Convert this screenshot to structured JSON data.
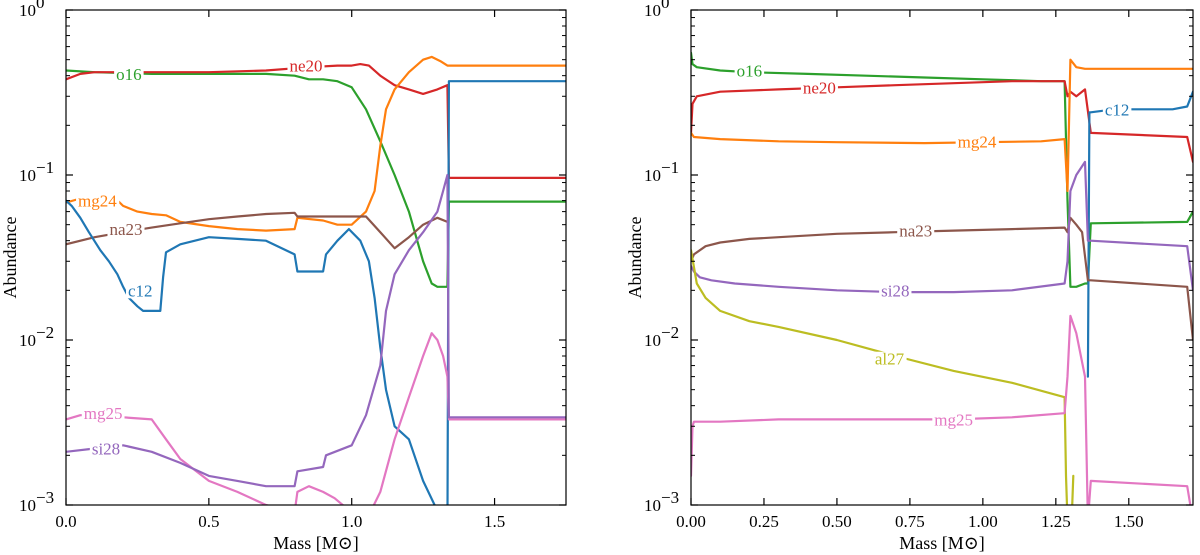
{
  "chart_data": [
    {
      "type": "line",
      "yscale": "log",
      "xlabel": "Mass [M⊙]",
      "ylabel": "Abundance",
      "xlim": [
        0,
        1.75
      ],
      "ylim": [
        0.001,
        1
      ],
      "xticks": [
        0.0,
        0.5,
        1.0,
        1.5
      ],
      "xtick_labels": [
        "0.0",
        "0.5",
        "1.0",
        "1.5"
      ],
      "yticks": [
        0.001,
        0.01,
        0.1,
        1
      ],
      "ytick_labels": [
        {
          "base": "10",
          "exp": "−3"
        },
        {
          "base": "10",
          "exp": "−2"
        },
        {
          "base": "10",
          "exp": "−1"
        },
        {
          "base": "10",
          "exp": "0"
        }
      ],
      "series": [
        {
          "name": "o16",
          "color": "#2ca02c",
          "label_at": [
            0.22,
            0.41
          ],
          "x": [
            0,
            0.1,
            0.3,
            0.5,
            0.7,
            0.8,
            0.85,
            0.9,
            0.95,
            1.0,
            1.05,
            1.1,
            1.15,
            1.2,
            1.25,
            1.28,
            1.3,
            1.32,
            1.335,
            1.34,
            1.75
          ],
          "y": [
            0.43,
            0.42,
            0.41,
            0.41,
            0.41,
            0.4,
            0.38,
            0.38,
            0.37,
            0.34,
            0.25,
            0.16,
            0.1,
            0.06,
            0.03,
            0.022,
            0.021,
            0.021,
            0.021,
            0.069,
            0.069
          ]
        },
        {
          "name": "ne20",
          "color": "#d62728",
          "label_at": [
            0.84,
            0.46
          ],
          "x": [
            0,
            0.05,
            0.1,
            0.3,
            0.5,
            0.7,
            0.85,
            0.95,
            1.0,
            1.03,
            1.06,
            1.1,
            1.15,
            1.2,
            1.25,
            1.3,
            1.335,
            1.34,
            1.75
          ],
          "y": [
            0.38,
            0.41,
            0.42,
            0.42,
            0.42,
            0.43,
            0.45,
            0.46,
            0.46,
            0.47,
            0.46,
            0.4,
            0.35,
            0.33,
            0.31,
            0.33,
            0.35,
            0.096,
            0.096
          ]
        },
        {
          "name": "mg24",
          "color": "#ff7f0e",
          "label_at": [
            0.11,
            0.07
          ],
          "x": [
            0,
            0.05,
            0.1,
            0.17,
            0.2,
            0.25,
            0.3,
            0.35,
            0.4,
            0.5,
            0.6,
            0.7,
            0.8,
            0.81,
            0.9,
            0.95,
            1.0,
            1.05,
            1.08,
            1.1,
            1.12,
            1.15,
            1.2,
            1.25,
            1.28,
            1.31,
            1.335,
            1.34,
            1.75
          ],
          "y": [
            0.068,
            0.072,
            0.072,
            0.073,
            0.065,
            0.06,
            0.058,
            0.057,
            0.052,
            0.049,
            0.047,
            0.046,
            0.047,
            0.055,
            0.053,
            0.05,
            0.05,
            0.06,
            0.08,
            0.15,
            0.25,
            0.33,
            0.42,
            0.5,
            0.52,
            0.49,
            0.46,
            0.46,
            0.46
          ]
        },
        {
          "name": "na23",
          "color": "#8c564b",
          "label_at": [
            0.21,
            0.047
          ],
          "x": [
            0,
            0.1,
            0.2,
            0.3,
            0.4,
            0.5,
            0.6,
            0.7,
            0.8,
            0.81,
            0.9,
            1.0,
            1.05,
            1.1,
            1.15,
            1.2,
            1.25,
            1.3,
            1.335
          ],
          "y": [
            0.038,
            0.042,
            0.045,
            0.048,
            0.051,
            0.054,
            0.056,
            0.058,
            0.059,
            0.056,
            0.056,
            0.056,
            0.056,
            0.045,
            0.036,
            0.042,
            0.05,
            0.055,
            0.052
          ]
        },
        {
          "name": "c12",
          "color": "#1f77b4",
          "label_at": [
            0.26,
            0.02
          ],
          "x": [
            0,
            0.02,
            0.05,
            0.08,
            0.12,
            0.15,
            0.18,
            0.2,
            0.22,
            0.25,
            0.27,
            0.3,
            0.33,
            0.34,
            0.35,
            0.4,
            0.5,
            0.6,
            0.7,
            0.8,
            0.81,
            0.9,
            0.91,
            0.95,
            0.99,
            1.03,
            1.06,
            1.08,
            1.1,
            1.12,
            1.15,
            1.2,
            1.25,
            1.29,
            1.3,
            1.335,
            1.34,
            1.75
          ],
          "y": [
            0.07,
            0.065,
            0.055,
            0.045,
            0.035,
            0.03,
            0.025,
            0.021,
            0.018,
            0.016,
            0.015,
            0.015,
            0.015,
            0.024,
            0.034,
            0.038,
            0.042,
            0.041,
            0.04,
            0.033,
            0.026,
            0.026,
            0.033,
            0.04,
            0.047,
            0.04,
            0.03,
            0.018,
            0.009,
            0.005,
            0.003,
            0.0025,
            0.0014,
            0.001,
            0.0006,
            0.0006,
            0.37,
            0.37
          ]
        },
        {
          "name": "mg25",
          "color": "#e377c2",
          "label_at": [
            0.13,
            0.0036
          ],
          "x": [
            0,
            0.05,
            0.1,
            0.2,
            0.3,
            0.35,
            0.4,
            0.5,
            0.6,
            0.7,
            0.8,
            0.81,
            0.85,
            0.9,
            0.94,
            1.0,
            1.05,
            1.1,
            1.15,
            1.2,
            1.25,
            1.28,
            1.3,
            1.32,
            1.335,
            1.34,
            1.75
          ],
          "y": [
            0.0033,
            0.0035,
            0.0035,
            0.0034,
            0.0033,
            0.0025,
            0.0019,
            0.0014,
            0.0012,
            0.001,
            0.0009,
            0.0012,
            0.0013,
            0.0012,
            0.0011,
            0.0009,
            0.0008,
            0.0012,
            0.0025,
            0.0045,
            0.008,
            0.011,
            0.01,
            0.008,
            0.006,
            0.0033,
            0.0033
          ]
        },
        {
          "name": "si28",
          "color": "#9467bd",
          "label_at": [
            0.14,
            0.0022
          ],
          "x": [
            0,
            0.1,
            0.2,
            0.3,
            0.4,
            0.5,
            0.6,
            0.7,
            0.8,
            0.81,
            0.9,
            0.91,
            1.0,
            1.05,
            1.1,
            1.12,
            1.15,
            1.2,
            1.25,
            1.3,
            1.32,
            1.335,
            1.34,
            1.75
          ],
          "y": [
            0.0021,
            0.0022,
            0.0023,
            0.0021,
            0.0018,
            0.0015,
            0.0014,
            0.0013,
            0.0013,
            0.0016,
            0.0017,
            0.002,
            0.0023,
            0.0035,
            0.007,
            0.015,
            0.025,
            0.035,
            0.045,
            0.06,
            0.08,
            0.1,
            0.0034,
            0.0034
          ]
        }
      ]
    },
    {
      "type": "line",
      "yscale": "log",
      "xlabel": "Mass [M⊙]",
      "ylabel": "Abundance",
      "xlim": [
        0,
        1.72
      ],
      "ylim": [
        0.001,
        1
      ],
      "xticks": [
        0.0,
        0.25,
        0.5,
        0.75,
        1.0,
        1.25,
        1.5
      ],
      "xtick_labels": [
        "0.00",
        "0.25",
        "0.50",
        "0.75",
        "1.00",
        "1.25",
        "1.50"
      ],
      "yticks": [
        0.001,
        0.01,
        0.1,
        1
      ],
      "ytick_labels": [
        {
          "base": "10",
          "exp": "−3"
        },
        {
          "base": "10",
          "exp": "−2"
        },
        {
          "base": "10",
          "exp": "−1"
        },
        {
          "base": "10",
          "exp": "0"
        }
      ],
      "series": [
        {
          "name": "o16",
          "color": "#2ca02c",
          "label_at": [
            0.2,
            0.43
          ],
          "x": [
            0,
            0.005,
            0.02,
            0.1,
            0.2,
            0.4,
            0.6,
            0.8,
            1.0,
            1.2,
            1.28,
            1.29,
            1.3,
            1.32,
            1.35,
            1.36,
            1.37,
            1.7,
            1.72
          ],
          "y": [
            0.55,
            0.47,
            0.45,
            0.43,
            0.42,
            0.41,
            0.4,
            0.39,
            0.38,
            0.37,
            0.37,
            0.07,
            0.021,
            0.021,
            0.022,
            0.022,
            0.051,
            0.052,
            0.06
          ]
        },
        {
          "name": "ne20",
          "color": "#d62728",
          "label_at": [
            0.44,
            0.34
          ],
          "x": [
            0,
            0.005,
            0.02,
            0.1,
            0.3,
            0.5,
            0.7,
            0.9,
            1.1,
            1.28,
            1.29,
            1.3,
            1.32,
            1.35,
            1.37,
            1.7,
            1.72
          ],
          "y": [
            0.18,
            0.27,
            0.3,
            0.32,
            0.33,
            0.34,
            0.35,
            0.36,
            0.37,
            0.37,
            0.3,
            0.32,
            0.3,
            0.33,
            0.18,
            0.17,
            0.12
          ]
        },
        {
          "name": "mg24",
          "color": "#ff7f0e",
          "label_at": [
            0.98,
            0.16
          ],
          "x": [
            0,
            0.01,
            0.1,
            0.3,
            0.5,
            0.8,
            1.0,
            1.2,
            1.28,
            1.29,
            1.3,
            1.32,
            1.35,
            1.37,
            1.7,
            1.72
          ],
          "y": [
            0.18,
            0.17,
            0.165,
            0.16,
            0.158,
            0.156,
            0.158,
            0.16,
            0.165,
            0.08,
            0.5,
            0.45,
            0.44,
            0.44,
            0.44,
            0.44
          ]
        },
        {
          "name": "c12",
          "color": "#1f77b4",
          "label_at": [
            1.46,
            0.25
          ],
          "x": [
            1.36,
            1.365,
            1.37,
            1.45,
            1.55,
            1.65,
            1.7,
            1.72
          ],
          "y": [
            0.006,
            0.24,
            0.24,
            0.25,
            0.25,
            0.25,
            0.26,
            0.32
          ]
        },
        {
          "name": "na23",
          "color": "#8c564b",
          "label_at": [
            0.77,
            0.046
          ],
          "x": [
            0,
            0.01,
            0.05,
            0.1,
            0.2,
            0.3,
            0.5,
            0.7,
            0.9,
            1.1,
            1.28,
            1.29,
            1.3,
            1.32,
            1.34,
            1.36,
            1.37,
            1.7,
            1.72
          ],
          "y": [
            0.03,
            0.033,
            0.037,
            0.039,
            0.041,
            0.042,
            0.044,
            0.045,
            0.046,
            0.047,
            0.048,
            0.045,
            0.055,
            0.05,
            0.045,
            0.023,
            0.023,
            0.021,
            0.01
          ]
        },
        {
          "name": "si28",
          "color": "#9467bd",
          "label_at": [
            0.7,
            0.02
          ],
          "x": [
            0,
            0.01,
            0.03,
            0.07,
            0.15,
            0.3,
            0.5,
            0.7,
            0.9,
            1.1,
            1.28,
            1.29,
            1.3,
            1.32,
            1.35,
            1.36,
            1.37,
            1.7,
            1.72
          ],
          "y": [
            0.028,
            0.026,
            0.024,
            0.023,
            0.022,
            0.021,
            0.02,
            0.0195,
            0.0195,
            0.02,
            0.022,
            0.03,
            0.08,
            0.1,
            0.12,
            0.04,
            0.04,
            0.037,
            0.02
          ]
        },
        {
          "name": "al27",
          "color": "#bcbd22",
          "label_at": [
            0.68,
            0.0077
          ],
          "x": [
            0,
            0.02,
            0.05,
            0.1,
            0.2,
            0.3,
            0.5,
            0.7,
            0.9,
            1.1,
            1.28,
            1.285,
            1.29,
            1.3,
            1.31
          ],
          "y": [
            0.035,
            0.022,
            0.018,
            0.015,
            0.013,
            0.012,
            0.01,
            0.008,
            0.0065,
            0.0055,
            0.0045,
            0.0015,
            0.0008,
            0.0005,
            0.0015
          ]
        },
        {
          "name": "mg25",
          "color": "#e377c2",
          "label_at": [
            0.9,
            0.0033
          ],
          "x": [
            0,
            0.005,
            0.01,
            0.1,
            0.3,
            0.5,
            0.7,
            0.9,
            1.1,
            1.28,
            1.29,
            1.3,
            1.32,
            1.35,
            1.36,
            1.37,
            1.7,
            1.72
          ],
          "y": [
            0.0015,
            0.003,
            0.0032,
            0.0032,
            0.0033,
            0.0033,
            0.0033,
            0.0033,
            0.0034,
            0.0036,
            0.006,
            0.014,
            0.011,
            0.006,
            0.0008,
            0.0014,
            0.0013,
            0.0008
          ]
        }
      ]
    }
  ]
}
